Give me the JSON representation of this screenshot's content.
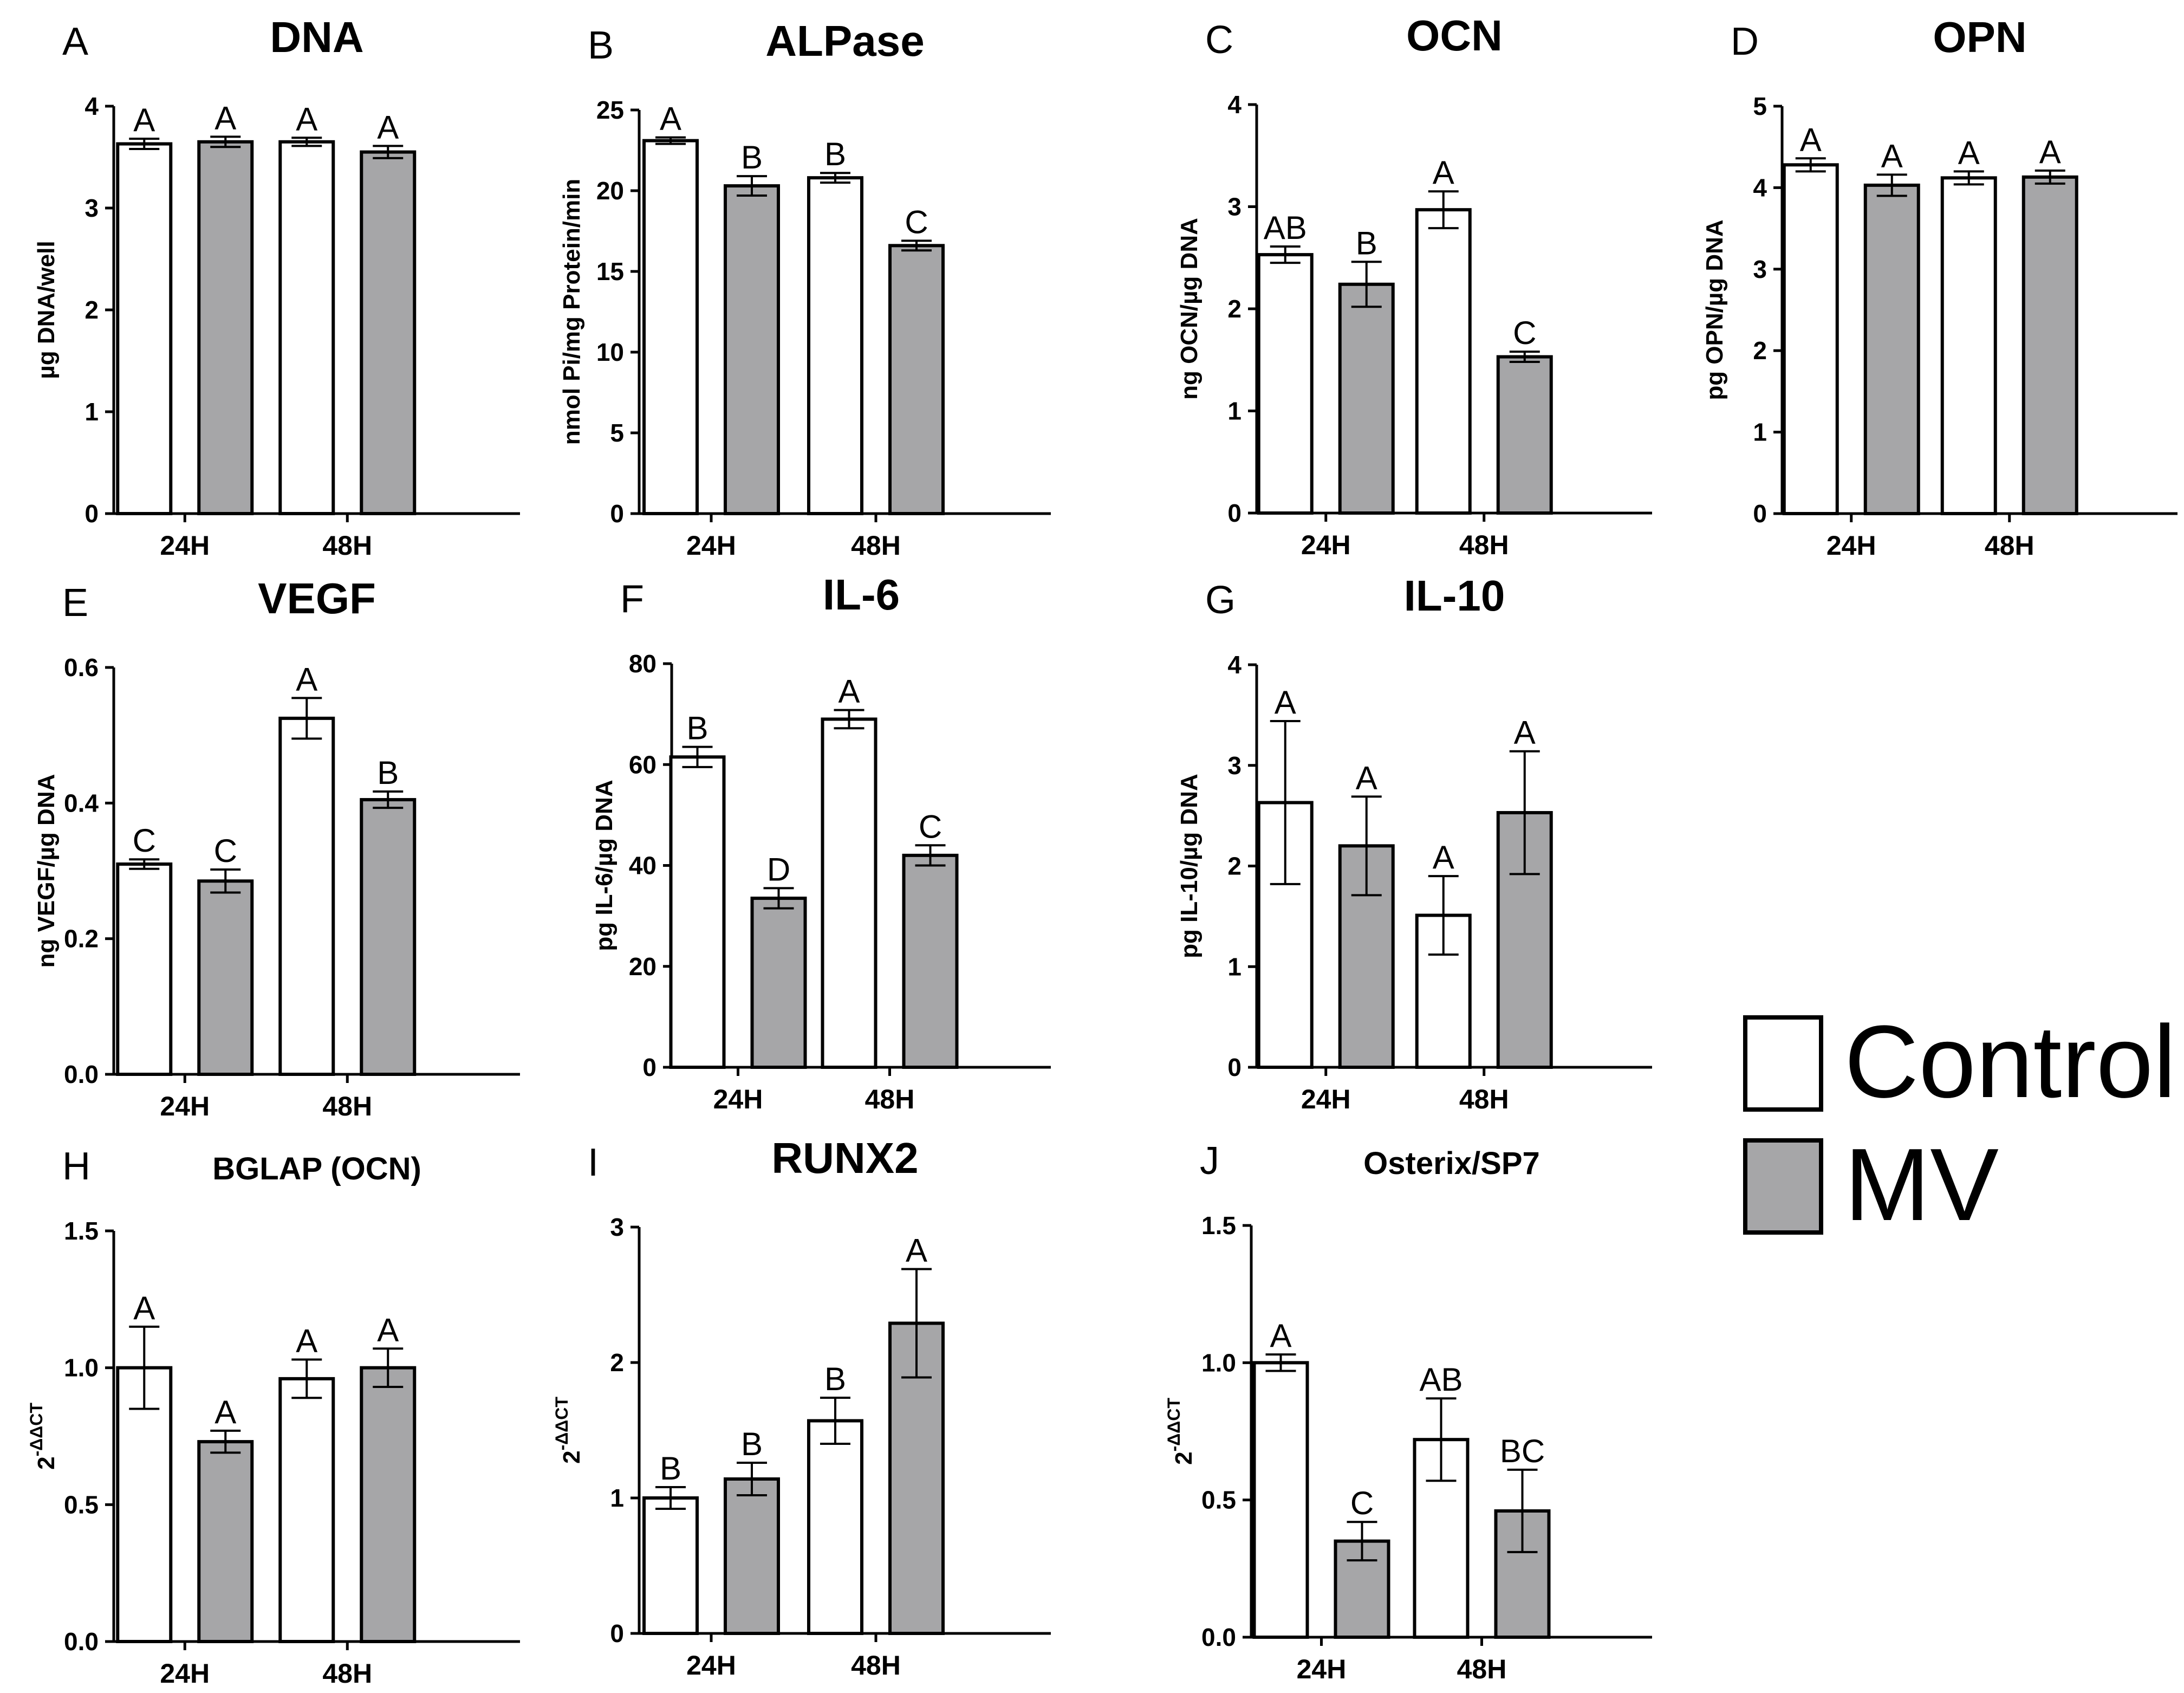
{
  "figure": {
    "legend": [
      {
        "label": "Control",
        "color": "#ffffff"
      },
      {
        "label": "MV",
        "color": "#a6a6a8"
      }
    ]
  },
  "chart_data": [
    {
      "panel": "A",
      "type": "bar",
      "title": "DNA",
      "ylabel": "µg DNA/well",
      "categories": [
        "24H",
        "48H"
      ],
      "ylim": [
        0,
        4
      ],
      "yticks": [
        "0",
        "1",
        "2",
        "3",
        "4"
      ],
      "series": [
        {
          "name": "Control",
          "values": [
            3.63,
            3.65
          ],
          "errors": [
            0.05,
            0.04
          ],
          "letters": [
            "A",
            "A"
          ]
        },
        {
          "name": "MV",
          "values": [
            3.65,
            3.55
          ],
          "errors": [
            0.05,
            0.06
          ],
          "letters": [
            "A",
            "A"
          ]
        }
      ]
    },
    {
      "panel": "B",
      "type": "bar",
      "title": "ALPase",
      "ylabel": "nmol Pi/mg Protein/min",
      "categories": [
        "24H",
        "48H"
      ],
      "ylim": [
        0,
        25
      ],
      "yticks": [
        "0",
        "5",
        "10",
        "15",
        "20",
        "25"
      ],
      "series": [
        {
          "name": "Control",
          "values": [
            23.1,
            20.8
          ],
          "errors": [
            0.2,
            0.3
          ],
          "letters": [
            "A",
            "B"
          ]
        },
        {
          "name": "MV",
          "values": [
            20.3,
            16.6
          ],
          "errors": [
            0.6,
            0.3
          ],
          "letters": [
            "B",
            "C"
          ]
        }
      ]
    },
    {
      "panel": "C",
      "type": "bar",
      "title": "OCN",
      "ylabel": "ng OCN/µg DNA",
      "categories": [
        "24H",
        "48H"
      ],
      "ylim": [
        0,
        4
      ],
      "yticks": [
        "0",
        "1",
        "2",
        "3",
        "4"
      ],
      "series": [
        {
          "name": "Control",
          "values": [
            2.53,
            2.97
          ],
          "errors": [
            0.08,
            0.18
          ],
          "letters": [
            "AB",
            "A"
          ]
        },
        {
          "name": "MV",
          "values": [
            2.24,
            1.53
          ],
          "errors": [
            0.22,
            0.05
          ],
          "letters": [
            "B",
            "C"
          ]
        }
      ]
    },
    {
      "panel": "D",
      "type": "bar",
      "title": "OPN",
      "ylabel": "pg OPN/µg DNA",
      "categories": [
        "24H",
        "48H"
      ],
      "ylim": [
        0,
        5
      ],
      "yticks": [
        "0",
        "1",
        "2",
        "3",
        "4",
        "5"
      ],
      "series": [
        {
          "name": "Control",
          "values": [
            4.28,
            4.12
          ],
          "errors": [
            0.08,
            0.08
          ],
          "letters": [
            "A",
            "A"
          ]
        },
        {
          "name": "MV",
          "values": [
            4.03,
            4.13
          ],
          "errors": [
            0.13,
            0.08
          ],
          "letters": [
            "A",
            "A"
          ]
        }
      ]
    },
    {
      "panel": "E",
      "type": "bar",
      "title": "VEGF",
      "ylabel": "ng VEGF/µg DNA",
      "categories": [
        "24H",
        "48H"
      ],
      "ylim": [
        0,
        0.6
      ],
      "yticks": [
        "0.0",
        "0.2",
        "0.4",
        "0.6"
      ],
      "series": [
        {
          "name": "Control",
          "values": [
            0.31,
            0.525
          ],
          "errors": [
            0.007,
            0.03
          ],
          "letters": [
            "C",
            "A"
          ]
        },
        {
          "name": "MV",
          "values": [
            0.285,
            0.405
          ],
          "errors": [
            0.017,
            0.012
          ],
          "letters": [
            "C",
            "B"
          ]
        }
      ]
    },
    {
      "panel": "F",
      "type": "bar",
      "title": "IL-6",
      "ylabel": "pg IL-6/µg DNA",
      "categories": [
        "24H",
        "48H"
      ],
      "ylim": [
        0,
        80
      ],
      "yticks": [
        "0",
        "20",
        "40",
        "60",
        "80"
      ],
      "series": [
        {
          "name": "Control",
          "values": [
            61.5,
            69
          ],
          "errors": [
            2.0,
            1.8
          ],
          "letters": [
            "B",
            "A"
          ]
        },
        {
          "name": "MV",
          "values": [
            33.5,
            42
          ],
          "errors": [
            2.0,
            2.0
          ],
          "letters": [
            "D",
            "C"
          ]
        }
      ]
    },
    {
      "panel": "G",
      "type": "bar",
      "title": "IL-10",
      "ylabel": "pg IL-10/µg DNA",
      "categories": [
        "24H",
        "48H"
      ],
      "ylim": [
        0,
        4
      ],
      "yticks": [
        "0",
        "1",
        "2",
        "3",
        "4"
      ],
      "series": [
        {
          "name": "Control",
          "values": [
            2.63,
            1.51
          ],
          "errors": [
            0.81,
            0.39
          ],
          "letters": [
            "A",
            "A"
          ]
        },
        {
          "name": "MV",
          "values": [
            2.2,
            2.53
          ],
          "errors": [
            0.49,
            0.61
          ],
          "letters": [
            "A",
            "A"
          ]
        }
      ]
    },
    {
      "panel": "H",
      "type": "bar",
      "title": "BGLAP (OCN)",
      "ylabel": "2-ΔΔCT",
      "categories": [
        "24H",
        "48H"
      ],
      "ylim": [
        0,
        1.5
      ],
      "yticks": [
        "0.0",
        "0.5",
        "1.0",
        "1.5"
      ],
      "series": [
        {
          "name": "Control",
          "values": [
            1.0,
            0.96
          ],
          "errors": [
            0.15,
            0.07
          ],
          "letters": [
            "A",
            "A"
          ]
        },
        {
          "name": "MV",
          "values": [
            0.73,
            1.0
          ],
          "errors": [
            0.04,
            0.07
          ],
          "letters": [
            "A",
            "A"
          ]
        }
      ]
    },
    {
      "panel": "I",
      "type": "bar",
      "title": "RUNX2",
      "ylabel": "2-ΔΔCT",
      "categories": [
        "24H",
        "48H"
      ],
      "ylim": [
        0,
        3
      ],
      "yticks": [
        "0",
        "1",
        "2",
        "3"
      ],
      "series": [
        {
          "name": "Control",
          "values": [
            1.0,
            1.57
          ],
          "errors": [
            0.08,
            0.17
          ],
          "letters": [
            "B",
            "B"
          ]
        },
        {
          "name": "MV",
          "values": [
            1.14,
            2.29
          ],
          "errors": [
            0.12,
            0.4
          ],
          "letters": [
            "B",
            "A"
          ]
        }
      ]
    },
    {
      "panel": "J",
      "type": "bar",
      "title": "Osterix/SP7",
      "ylabel": "2-ΔΔCT",
      "categories": [
        "24H",
        "48H"
      ],
      "ylim": [
        0,
        1.5
      ],
      "yticks": [
        "0.0",
        "0.5",
        "1.0",
        "1.5"
      ],
      "series": [
        {
          "name": "Control",
          "values": [
            1.0,
            0.72
          ],
          "errors": [
            0.03,
            0.15
          ],
          "letters": [
            "A",
            "AB"
          ]
        },
        {
          "name": "MV",
          "values": [
            0.35,
            0.46
          ],
          "errors": [
            0.07,
            0.15
          ],
          "letters": [
            "C",
            "BC"
          ]
        }
      ]
    }
  ]
}
